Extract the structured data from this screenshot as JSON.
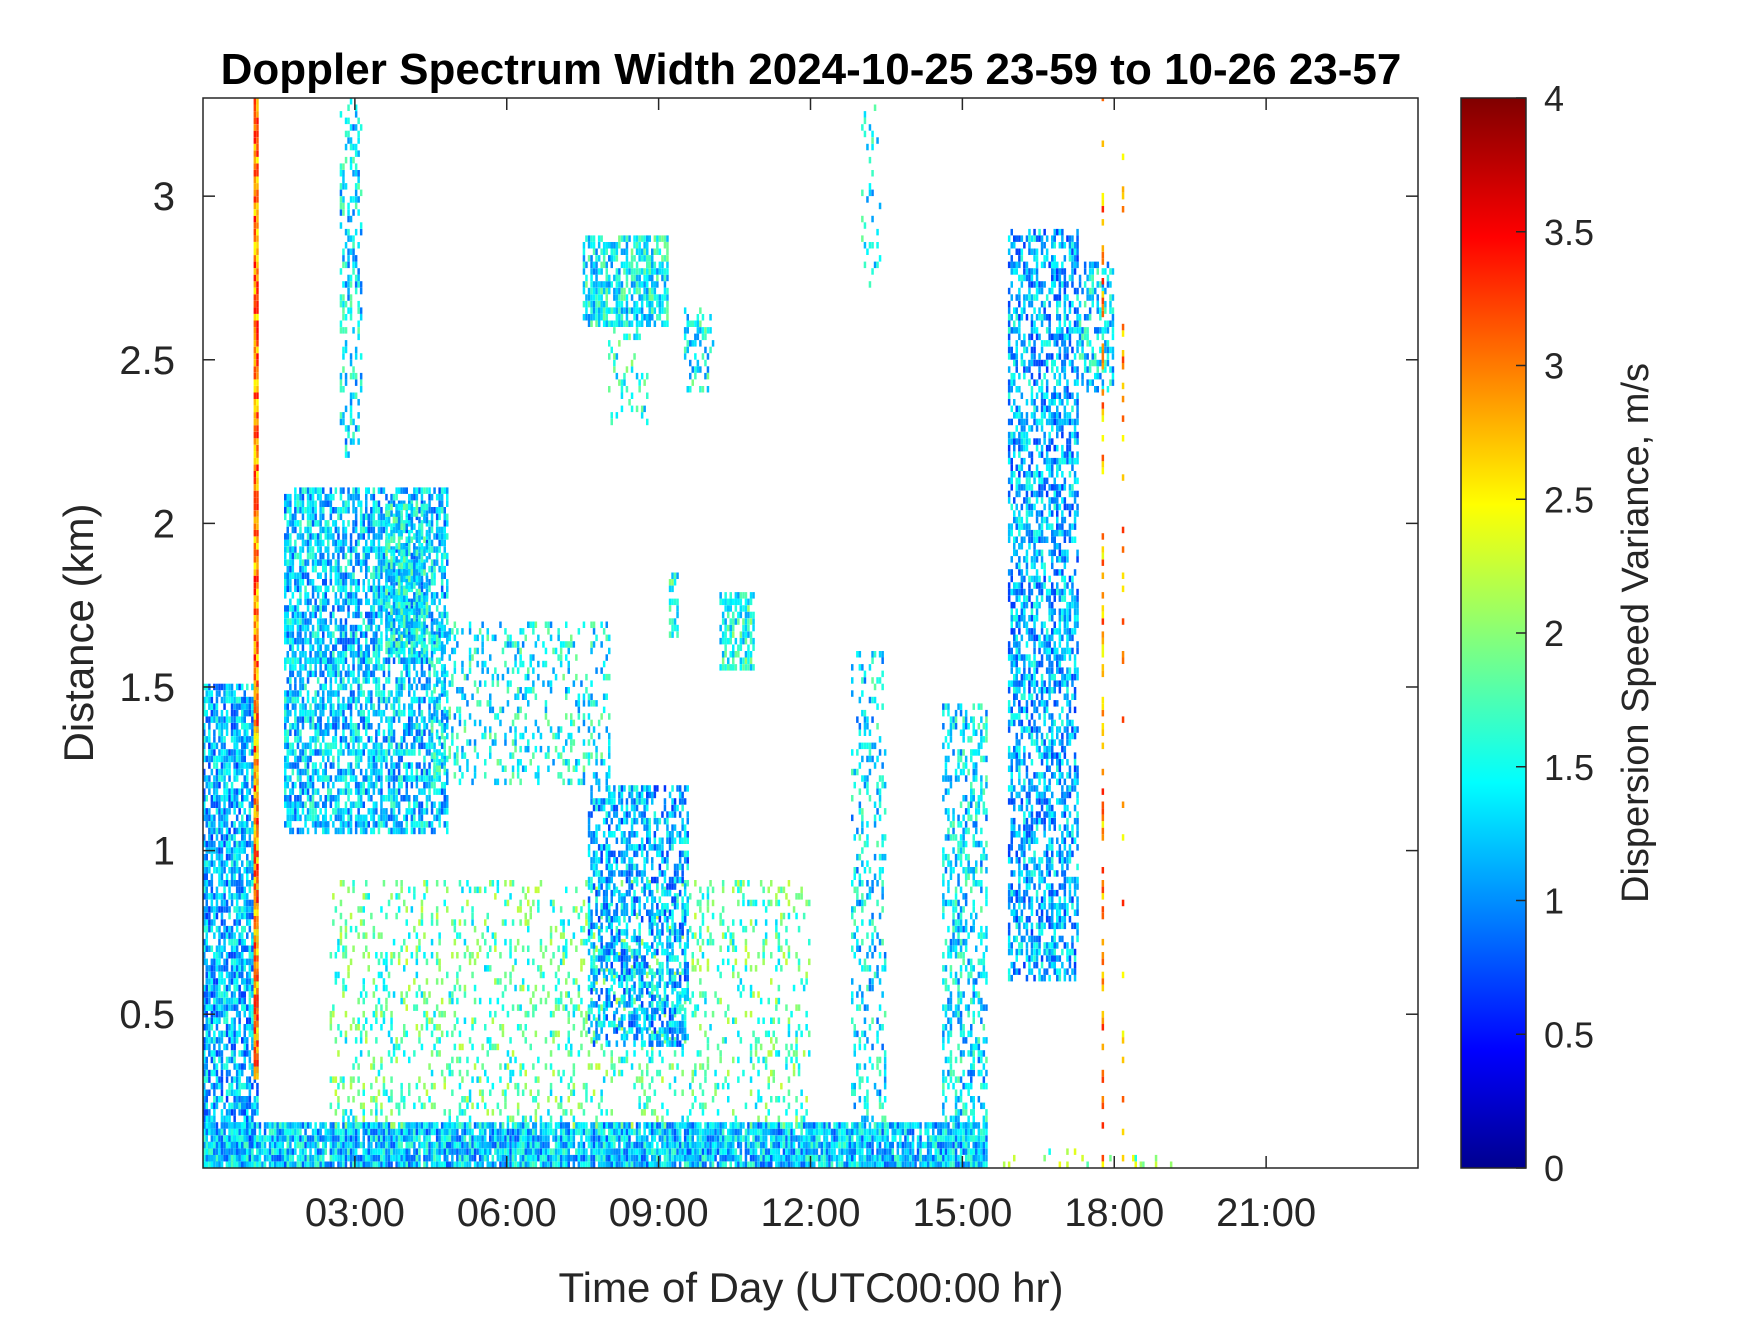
{
  "chart_data": {
    "type": "heatmap",
    "title": "Doppler Spectrum Width 2024-10-25 23-59 to 10-26 23-57",
    "xlabel": "Time of Day (UTC00:00 hr)",
    "ylabel": "Distance (km)",
    "colorbar_label": "Dispersion Speed Variance, m/s",
    "colormap": "jet",
    "xlim": [
      0,
      24
    ],
    "ylim": [
      0.03,
      3.3
    ],
    "clim": [
      0,
      4
    ],
    "x_ticks": [
      {
        "value": 3,
        "label": "03:00"
      },
      {
        "value": 6,
        "label": "06:00"
      },
      {
        "value": 9,
        "label": "09:00"
      },
      {
        "value": 12,
        "label": "12:00"
      },
      {
        "value": 15,
        "label": "15:00"
      },
      {
        "value": 18,
        "label": "18:00"
      },
      {
        "value": 21,
        "label": "21:00"
      }
    ],
    "y_ticks": [
      {
        "value": 0.5,
        "label": "0.5"
      },
      {
        "value": 1,
        "label": "1"
      },
      {
        "value": 1.5,
        "label": "1.5"
      },
      {
        "value": 2,
        "label": "2"
      },
      {
        "value": 2.5,
        "label": "2.5"
      },
      {
        "value": 3,
        "label": "3"
      }
    ],
    "colorbar_ticks": [
      {
        "value": 0,
        "label": "0"
      },
      {
        "value": 0.5,
        "label": "0.5"
      },
      {
        "value": 1,
        "label": "1"
      },
      {
        "value": 1.5,
        "label": "1.5"
      },
      {
        "value": 2,
        "label": "2"
      },
      {
        "value": 2.5,
        "label": "2.5"
      },
      {
        "value": 3,
        "label": "3"
      },
      {
        "value": 3.5,
        "label": "3.5"
      },
      {
        "value": 4,
        "label": "4"
      }
    ],
    "grid": false,
    "regions": [
      {
        "t0": 0.0,
        "t1": 1.1,
        "d0": 0.03,
        "d1": 1.5,
        "density": 0.75,
        "mean": 1.2
      },
      {
        "t0": 1.0,
        "t1": 1.1,
        "d0": 0.3,
        "d1": 3.3,
        "density": 1.0,
        "mean": 3.0
      },
      {
        "t0": 0.0,
        "t1": 15.5,
        "d0": 0.03,
        "d1": 0.16,
        "density": 0.9,
        "mean": 1.3
      },
      {
        "t0": 15.5,
        "t1": 19.5,
        "d0": 0.03,
        "d1": 0.08,
        "density": 0.1,
        "mean": 2.0
      },
      {
        "t0": 1.6,
        "t1": 4.8,
        "d0": 1.05,
        "d1": 2.1,
        "density": 0.65,
        "mean": 1.3
      },
      {
        "t0": 3.6,
        "t1": 4.4,
        "d0": 1.6,
        "d1": 2.05,
        "density": 0.7,
        "mean": 1.5
      },
      {
        "t0": 4.5,
        "t1": 8.0,
        "d0": 1.2,
        "d1": 1.7,
        "density": 0.25,
        "mean": 1.5
      },
      {
        "t0": 2.7,
        "t1": 3.1,
        "d0": 2.2,
        "d1": 3.3,
        "density": 0.4,
        "mean": 1.4
      },
      {
        "t0": 2.5,
        "t1": 12.0,
        "d0": 0.15,
        "d1": 0.9,
        "density": 0.2,
        "mean": 1.8
      },
      {
        "t0": 7.6,
        "t1": 9.6,
        "d0": 0.4,
        "d1": 1.2,
        "density": 0.55,
        "mean": 1.2
      },
      {
        "t0": 7.5,
        "t1": 9.2,
        "d0": 2.6,
        "d1": 2.88,
        "density": 0.7,
        "mean": 1.5
      },
      {
        "t0": 8.0,
        "t1": 8.8,
        "d0": 2.3,
        "d1": 2.6,
        "density": 0.25,
        "mean": 1.6
      },
      {
        "t0": 9.2,
        "t1": 9.4,
        "d0": 1.65,
        "d1": 1.85,
        "density": 0.7,
        "mean": 1.6
      },
      {
        "t0": 10.2,
        "t1": 10.9,
        "d0": 1.55,
        "d1": 1.78,
        "density": 0.7,
        "mean": 1.6
      },
      {
        "t0": 9.5,
        "t1": 10.1,
        "d0": 2.4,
        "d1": 2.65,
        "density": 0.35,
        "mean": 1.5
      },
      {
        "t0": 12.8,
        "t1": 13.5,
        "d0": 0.15,
        "d1": 1.6,
        "density": 0.3,
        "mean": 1.4
      },
      {
        "t0": 14.6,
        "t1": 15.5,
        "d0": 0.15,
        "d1": 1.45,
        "density": 0.4,
        "mean": 1.4
      },
      {
        "t0": 15.9,
        "t1": 17.3,
        "d0": 0.6,
        "d1": 2.9,
        "density": 0.55,
        "mean": 1.2
      },
      {
        "t0": 17.3,
        "t1": 18.0,
        "d0": 2.4,
        "d1": 2.8,
        "density": 0.5,
        "mean": 1.4
      },
      {
        "t0": 13.0,
        "t1": 13.4,
        "d0": 2.7,
        "d1": 3.3,
        "density": 0.15,
        "mean": 1.5
      },
      {
        "t0": 17.75,
        "t1": 17.8,
        "d0": 0.03,
        "d1": 3.3,
        "density": 0.5,
        "mean": 2.9
      },
      {
        "t0": 18.15,
        "t1": 18.2,
        "d0": 0.03,
        "d1": 3.3,
        "density": 0.2,
        "mean": 2.9
      }
    ]
  }
}
